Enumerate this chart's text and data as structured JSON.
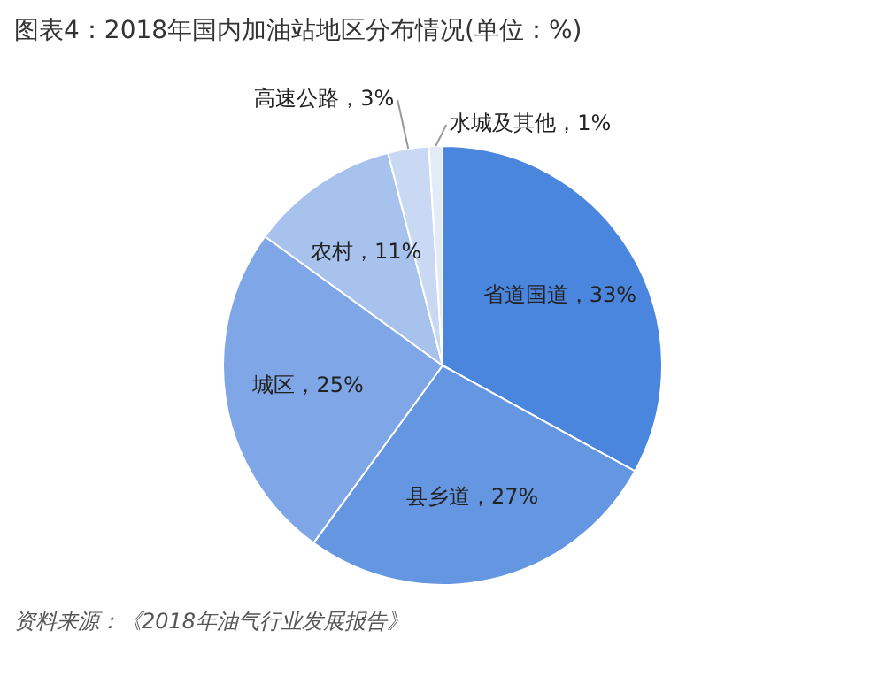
{
  "chart_data": {
    "type": "pie",
    "title": "图表4：2018年国内加油站地区分布情况(单位：%)",
    "categories": [
      "省道国道",
      "县乡道",
      "城区",
      "农村",
      "高速公路",
      "水城及其他"
    ],
    "values": [
      33,
      27,
      25,
      11,
      3,
      1
    ],
    "value_labels": [
      "33%",
      "27%",
      "25%",
      "11%",
      "3%",
      "1%"
    ],
    "colors": [
      "#4a86de",
      "#6596e2",
      "#7fa6e6",
      "#a8c2ee",
      "#c9d9f3",
      "#e3ebf8"
    ],
    "annotations": [
      "资料来源：《2018年油气行业发展报告》"
    ]
  }
}
